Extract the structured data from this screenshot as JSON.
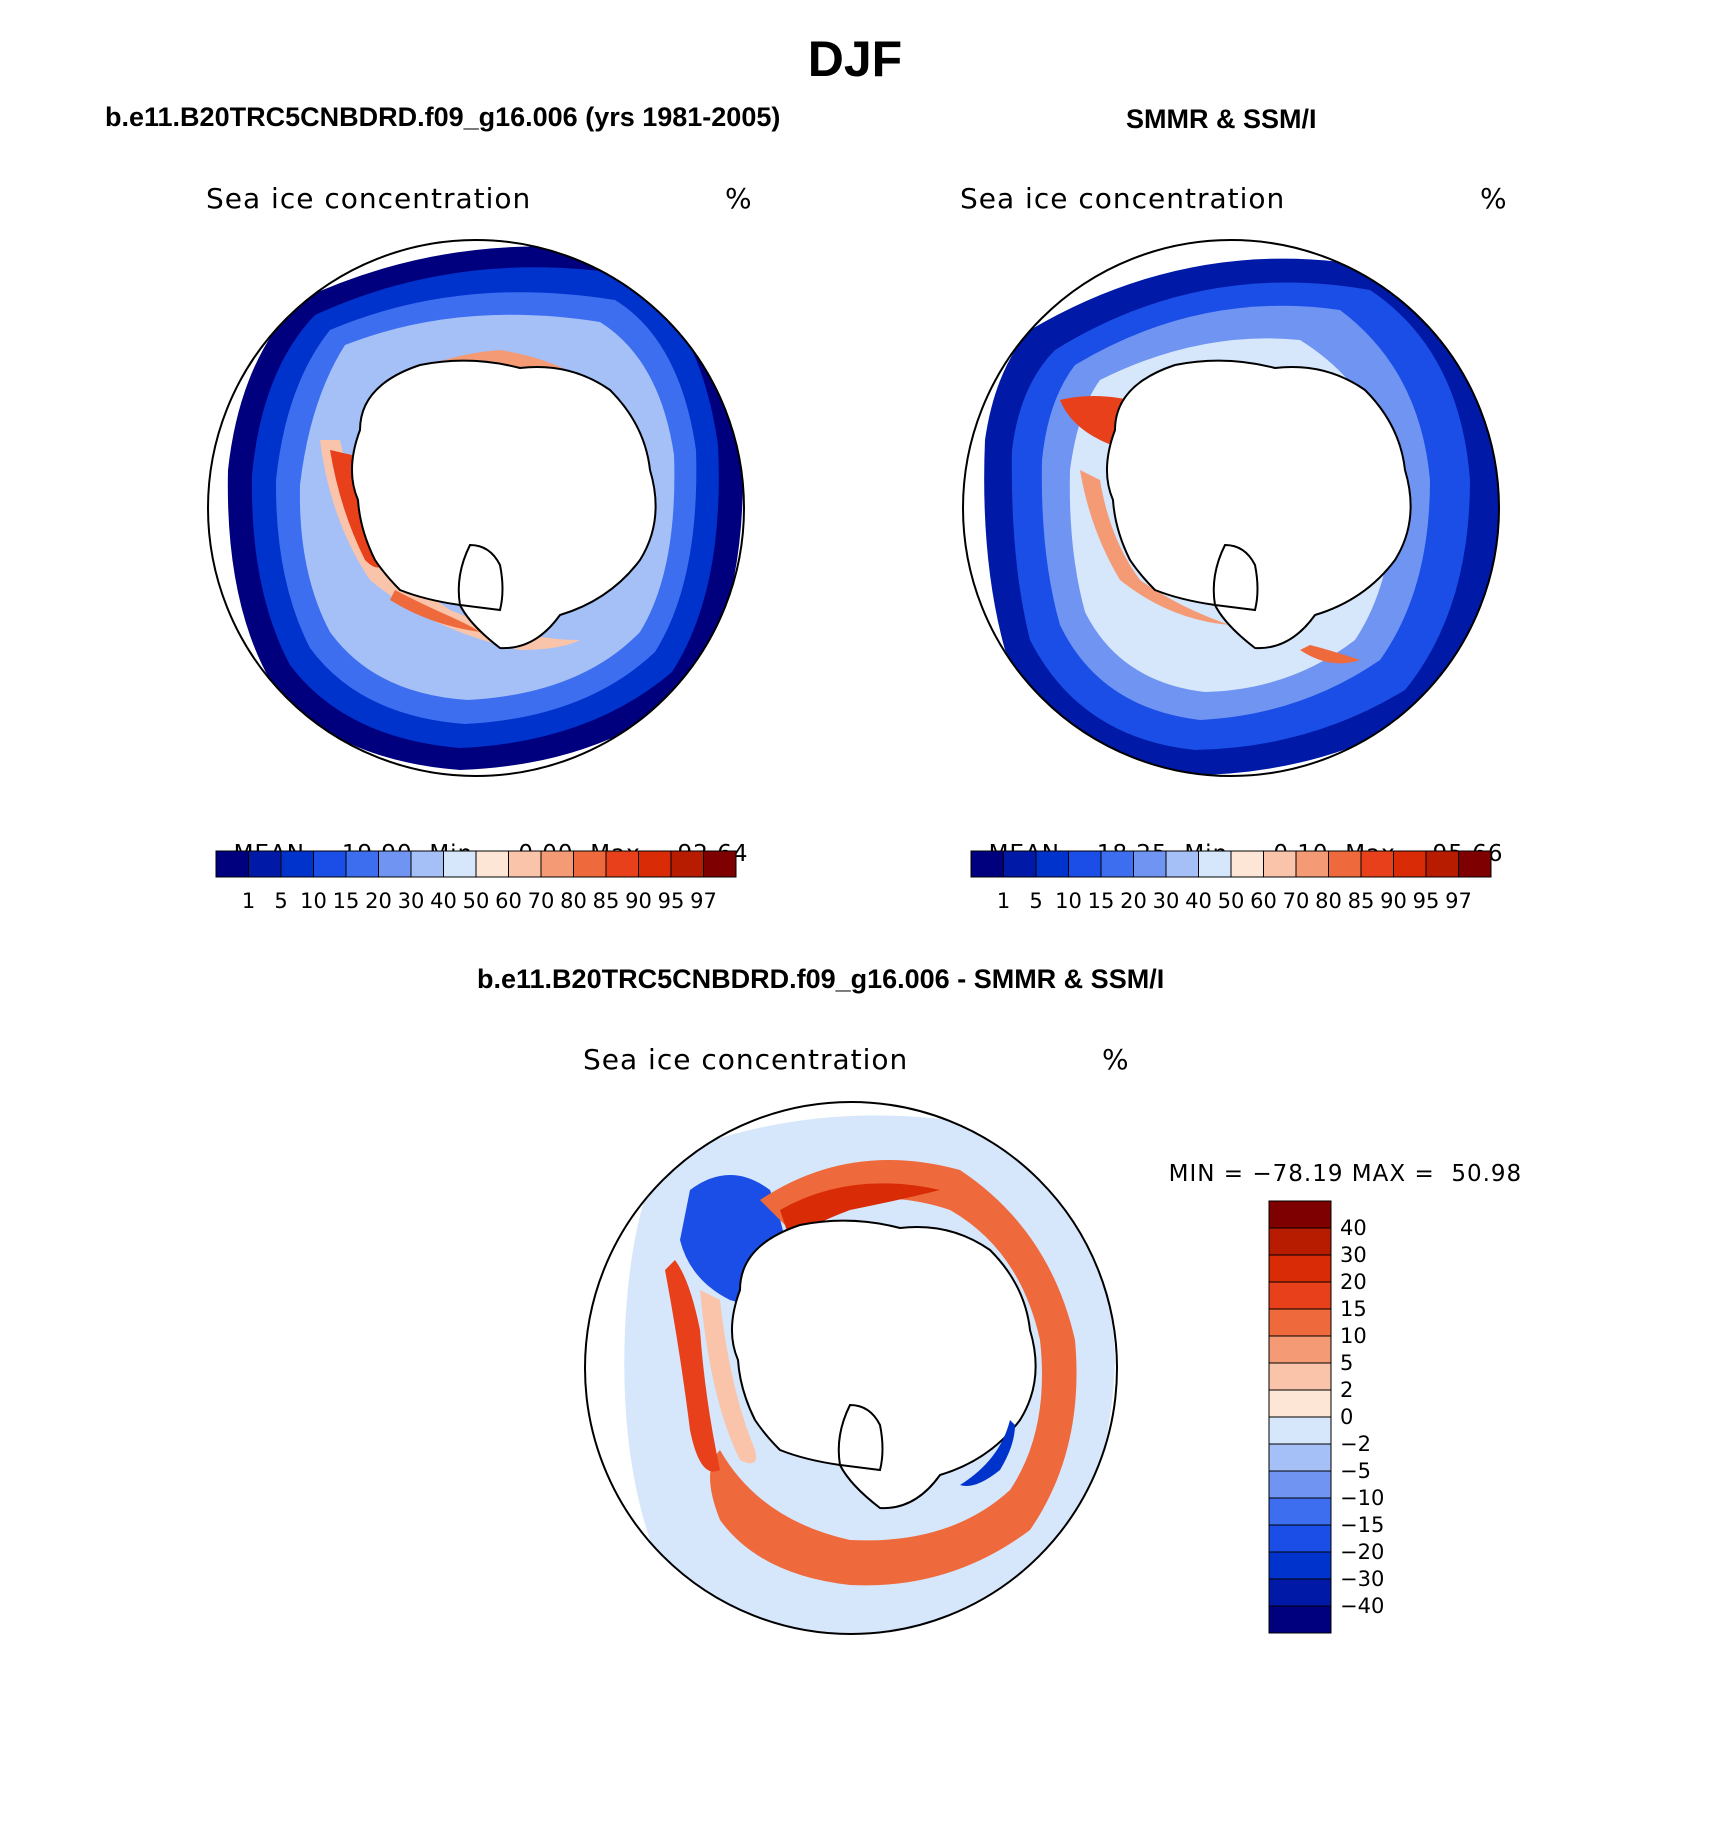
{
  "figure": {
    "title": "DJF"
  },
  "panels": {
    "model": {
      "title": "b.e11.B20TRC5CNBDRD.f09_g16.006 (yrs 1981-2005)",
      "variable": "Sea ice concentration",
      "units": "%",
      "stats": {
        "mean_label": "MEAN=",
        "mean": "19.90",
        "min_label": "Min=",
        "min": "0.00",
        "max_label": "Max=",
        "max": "92.64"
      }
    },
    "obs": {
      "title": "SMMR & SSM/I",
      "variable": "Sea ice concentration",
      "units": "%",
      "stats": {
        "mean_label": "MEAN=",
        "mean": "18.25",
        "min_label": "Min=",
        "min": "0.10",
        "max_label": "Max=",
        "max": "95.66"
      }
    },
    "diff": {
      "title": "b.e11.B20TRC5CNBDRD.f09_g16.006 - SMMR & SSM/I",
      "variable": "Sea ice concentration",
      "units": "%",
      "stats": {
        "min_label": "MIN =",
        "min": "−78.19",
        "max_label": "MAX =",
        "max": "50.98"
      }
    }
  },
  "colorbars": {
    "concentration": {
      "colors": [
        "#00007f",
        "#0019a6",
        "#0033cc",
        "#1a4ee6",
        "#3d6ef0",
        "#6f94f2",
        "#a5c0f7",
        "#d6e6fb",
        "#fde6d6",
        "#f9c4a9",
        "#f49b76",
        "#ee6a3d",
        "#e8401a",
        "#d92b05",
        "#b81c00",
        "#7f0000"
      ],
      "labels": [
        "1",
        "5",
        "10",
        "15",
        "20",
        "30",
        "40",
        "50",
        "60",
        "70",
        "80",
        "85",
        "90",
        "95",
        "97"
      ]
    },
    "difference": {
      "colors_top_to_bottom": [
        "#7f0000",
        "#b81c00",
        "#d92b05",
        "#e8401a",
        "#ee6a3d",
        "#f49b76",
        "#f9c4a9",
        "#fde6d6",
        "#d6e6fb",
        "#a5c0f7",
        "#6f94f2",
        "#3d6ef0",
        "#1a4ee6",
        "#0033cc",
        "#0019a6",
        "#00007f"
      ],
      "labels_top_to_bottom": [
        "40",
        "30",
        "20",
        "15",
        "10",
        "5",
        "2",
        "0",
        "−2",
        "−5",
        "−10",
        "−15",
        "−20",
        "−30",
        "−40"
      ]
    }
  }
}
